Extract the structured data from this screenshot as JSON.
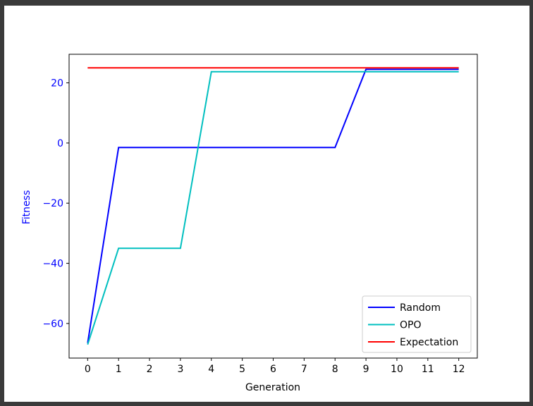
{
  "chart_data": {
    "type": "line",
    "title": "",
    "xlabel": "Generation",
    "ylabel": "Fitness",
    "x": [
      0,
      1,
      2,
      3,
      4,
      5,
      6,
      7,
      8,
      9,
      10,
      11,
      12
    ],
    "xticks": [
      "0",
      "1",
      "2",
      "3",
      "4",
      "5",
      "6",
      "7",
      "8",
      "9",
      "10",
      "11",
      "12"
    ],
    "yticks": [
      "20",
      "0",
      "−20",
      "−40",
      "−60"
    ],
    "ytick_values": [
      20,
      0,
      -20,
      -40,
      -60
    ],
    "xlim": [
      -0.6,
      12.6
    ],
    "ylim": [
      -71.5,
      29.5
    ],
    "grid": false,
    "legend_position": "lower-right",
    "series": [
      {
        "name": "Random",
        "color": "#0000ff",
        "values": [
          -66.5,
          -1.5,
          -1.5,
          -1.5,
          -1.5,
          -1.5,
          -1.5,
          -1.5,
          -1.5,
          24.5,
          24.5,
          24.5,
          24.5
        ]
      },
      {
        "name": "OPO",
        "color": "#00bfbf",
        "values": [
          -67,
          -35,
          -35,
          -35,
          23.7,
          23.7,
          23.7,
          23.7,
          23.7,
          23.7,
          23.7,
          23.7,
          23.7
        ]
      },
      {
        "name": "Expectation",
        "color": "#ff0000",
        "values": [
          25,
          25,
          25,
          25,
          25,
          25,
          25,
          25,
          25,
          25,
          25,
          25,
          25
        ]
      }
    ],
    "ylabel_color": "#0000ff",
    "ytick_color": "#0000ff"
  }
}
